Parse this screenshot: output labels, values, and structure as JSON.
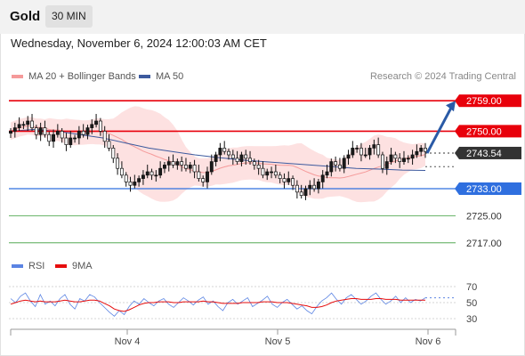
{
  "header": {
    "instrument": "Gold",
    "timeframe": "30 MIN",
    "datetime": "Wednesday, November 6, 2024 12:00:03 AM CET"
  },
  "legend": {
    "ma20_label": "MA 20 + Bollinger Bands",
    "ma50_label": "MA 50",
    "rsi_label": "RSI",
    "rsi_ma_label": "9MA",
    "credit": "Research © 2024 Trading Central"
  },
  "colors": {
    "up": "#1a1a1a",
    "down": "#ffffff",
    "resistance": "#e8000b",
    "pivot": "#2f6fdf",
    "support": "#3a9d3a",
    "bollinger_fill": "#fde1e1",
    "ma20": "#f59a9a",
    "ma50": "#3d5a9e",
    "rsi": "#5b84e3",
    "rsi_ma": "#e60d0d",
    "arrow": "#2a5aa6",
    "current": "#333333"
  },
  "chart_data": [
    {
      "type": "candlestick",
      "y_range": [
        2720,
        2765
      ],
      "x_tick_labels": [
        "Nov 4",
        "Nov 5",
        "Nov 6"
      ],
      "levels": [
        {
          "label": "2759.00",
          "value": 2759.0,
          "role": "resistance"
        },
        {
          "label": "2750.00",
          "value": 2750.0,
          "role": "resistance"
        },
        {
          "label": "2743.54",
          "value": 2743.54,
          "role": "current"
        },
        {
          "label": "2733.00",
          "value": 2733.0,
          "role": "pivot"
        },
        {
          "label": "2725.00",
          "value": 2725.0,
          "role": "support"
        },
        {
          "label": "2717.00",
          "value": 2717.0,
          "role": "support"
        }
      ],
      "forecast_arrow": {
        "from_value": 2743.5,
        "to_value": 2759.0
      },
      "candles_close": [
        2750,
        2751,
        2752,
        2752,
        2753,
        2751,
        2749,
        2751,
        2749,
        2747,
        2749,
        2750,
        2748,
        2746,
        2748,
        2748,
        2750,
        2749,
        2751,
        2752,
        2753,
        2750,
        2747,
        2745,
        2742,
        2739,
        2737,
        2735,
        2734,
        2735,
        2736,
        2737,
        2738,
        2737,
        2737,
        2739,
        2740,
        2741,
        2740,
        2741,
        2740,
        2739,
        2740,
        2738,
        2736,
        2735,
        2738,
        2741,
        2743,
        2745,
        2744,
        2743,
        2742,
        2741,
        2743,
        2742,
        2741,
        2740,
        2739,
        2737,
        2738,
        2738,
        2737,
        2736,
        2735,
        2736,
        2734,
        2732,
        2731,
        2733,
        2734,
        2733,
        2735,
        2737,
        2738,
        2741,
        2740,
        2739,
        2742,
        2743,
        2745,
        2745,
        2743,
        2743,
        2745,
        2746,
        2743,
        2739,
        2741,
        2743,
        2742,
        2741,
        2742,
        2742,
        2743,
        2744,
        2745,
        2744
      ],
      "ma50_y": [
        2750,
        2750.5,
        2750,
        2749,
        2748,
        2746.5,
        2745,
        2744,
        2743,
        2742.2,
        2741.5,
        2741,
        2740.5,
        2740,
        2739.5,
        2739,
        2738.8,
        2738.5,
        2738.4
      ]
    },
    {
      "type": "line",
      "y_ticks": [
        70,
        50,
        30
      ],
      "series": [
        {
          "name": "RSI",
          "values": [
            55,
            50,
            58,
            62,
            52,
            45,
            60,
            48,
            52,
            46,
            55,
            60,
            48,
            42,
            55,
            52,
            60,
            57,
            50,
            44,
            38,
            33,
            40,
            35,
            45,
            52,
            48,
            55,
            50,
            46,
            52,
            55,
            48,
            44,
            50,
            56,
            52,
            47,
            53,
            57,
            48,
            52,
            45,
            40,
            50,
            54,
            48,
            52,
            56,
            45,
            49,
            53,
            58,
            48,
            44,
            50,
            54,
            48,
            42,
            46,
            40,
            36,
            45,
            52,
            56,
            62,
            54,
            48,
            56,
            60,
            54,
            48,
            52,
            58,
            62,
            54,
            48,
            52,
            58,
            50,
            56,
            50,
            54,
            52,
            56
          ]
        },
        {
          "name": "9MA",
          "values": [
            48,
            50,
            52,
            53,
            52,
            51,
            52,
            51,
            51,
            51,
            52,
            53,
            52,
            51,
            51,
            52,
            53,
            53,
            52,
            49,
            46,
            42,
            40,
            39,
            41,
            44,
            47,
            49,
            50,
            50,
            51,
            51,
            51,
            50,
            50,
            51,
            51,
            51,
            51,
            52,
            51,
            51,
            50,
            49,
            49,
            49,
            49,
            50,
            50,
            50,
            50,
            51,
            51,
            51,
            50,
            50,
            50,
            49,
            48,
            47,
            46,
            44,
            44,
            45,
            47,
            50,
            52,
            53,
            54,
            55,
            55,
            54,
            54,
            54,
            55,
            55,
            54,
            54,
            54,
            53,
            53,
            53,
            53,
            53,
            53
          ]
        }
      ]
    }
  ]
}
